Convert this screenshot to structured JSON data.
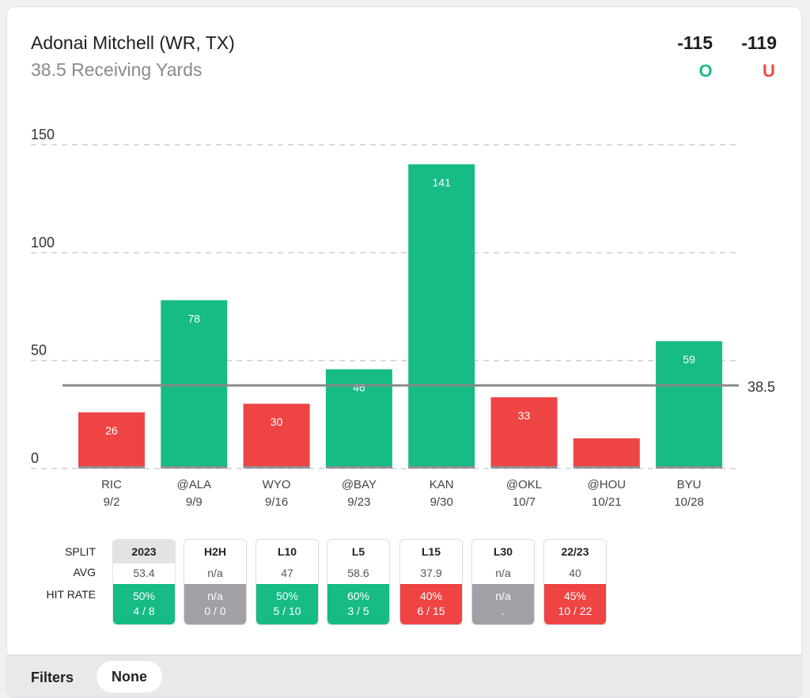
{
  "header": {
    "player": "Adonai Mitchell (WR, TX)",
    "prop": "38.5 Receiving Yards",
    "over_odds": "-115",
    "under_odds": "-119",
    "over_label": "O",
    "under_label": "U"
  },
  "colors": {
    "over": "#16bb85",
    "under": "#ef4444",
    "na": "#a0a0a6",
    "line": "#888888"
  },
  "chart_data": {
    "type": "bar",
    "categories": [
      "RIC",
      "@ALA",
      "WYO",
      "@BAY",
      "KAN",
      "@OKL",
      "@HOU",
      "BYU"
    ],
    "dates": [
      "9/2",
      "9/9",
      "9/16",
      "9/23",
      "9/30",
      "10/7",
      "10/21",
      "10/28"
    ],
    "values": [
      26,
      78,
      30,
      46,
      141,
      33,
      14,
      59
    ],
    "value_labels": [
      "26",
      "78",
      "30",
      "46",
      "141",
      "33",
      "",
      "59"
    ],
    "line_value": 38.5,
    "line_label": "38.5",
    "ylim": [
      0,
      150
    ],
    "yticks": [
      0,
      50,
      100,
      150
    ],
    "grid": true,
    "title": "",
    "xlabel": "",
    "ylabel": ""
  },
  "splits": {
    "row_labels": {
      "split": "SPLIT",
      "avg": "AVG",
      "hit": "HIT RATE"
    },
    "columns": [
      {
        "name": "2023",
        "avg": "53.4",
        "pct": "50%",
        "count": "4 / 8",
        "status": "over",
        "active": true
      },
      {
        "name": "H2H",
        "avg": "n/a",
        "pct": "n/a",
        "count": "0 / 0",
        "status": "na",
        "active": false
      },
      {
        "name": "L10",
        "avg": "47",
        "pct": "50%",
        "count": "5 / 10",
        "status": "over",
        "active": false
      },
      {
        "name": "L5",
        "avg": "58.6",
        "pct": "60%",
        "count": "3 / 5",
        "status": "over",
        "active": false
      },
      {
        "name": "L15",
        "avg": "37.9",
        "pct": "40%",
        "count": "6 / 15",
        "status": "under",
        "active": false
      },
      {
        "name": "L30",
        "avg": "n/a",
        "pct": "n/a",
        "count": ".",
        "status": "na",
        "active": false
      },
      {
        "name": "22/23",
        "avg": "40",
        "pct": "45%",
        "count": "10 / 22",
        "status": "under",
        "active": false
      }
    ]
  },
  "filters": {
    "label": "Filters",
    "value": "None"
  }
}
